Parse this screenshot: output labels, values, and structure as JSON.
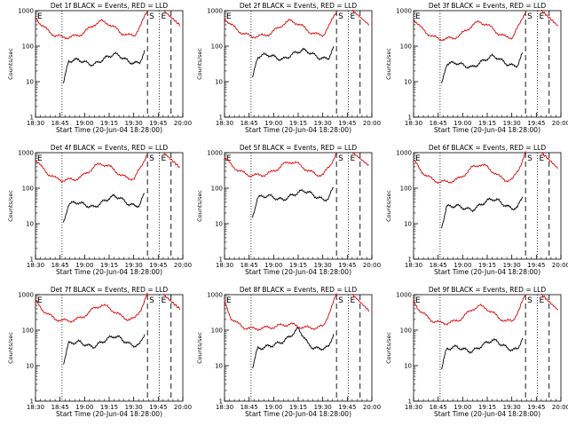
{
  "chart_data": [
    {
      "type": "line",
      "title": "Det 1f BLACK = Events, RED = LLD",
      "xlabel": "Start Time (20-Jun-04 18:28:00)",
      "ylabel": "Counts/sec",
      "yscale": "log",
      "ylim": [
        1,
        1000
      ],
      "xticks": [
        "18:30",
        "18:45",
        "19:00",
        "19:15",
        "19:30",
        "19:45",
        "20:00"
      ],
      "yticks": [
        "1",
        "10",
        "100",
        "1000"
      ],
      "markers": [
        "S",
        "E"
      ],
      "series": [
        {
          "color": "#000000",
          "values": [
            9,
            38,
            40,
            42,
            36,
            32,
            30,
            36,
            44,
            52,
            60,
            55,
            44,
            36,
            33,
            34,
            70
          ]
        },
        {
          "color": "#dd0000",
          "values": [
            650,
            380,
            260,
            200,
            180,
            180,
            190,
            220,
            300,
            420,
            500,
            440,
            330,
            240,
            200,
            200,
            390,
            1000
          ]
        }
      ]
    },
    {
      "type": "line",
      "title": "Det 2f BLACK = Events, RED = LLD",
      "xlabel": "Start Time (20-Jun-04 18:28:00)",
      "ylabel": "Counts/sec",
      "yscale": "log",
      "ylim": [
        1,
        1000
      ],
      "xticks": [
        "18:30",
        "18:45",
        "19:00",
        "19:15",
        "19:30",
        "19:45",
        "20:00"
      ],
      "yticks": [
        "1",
        "10",
        "100",
        "1000"
      ],
      "markers": [
        "S",
        "E"
      ],
      "series": [
        {
          "color": "#000000",
          "values": [
            12,
            50,
            55,
            58,
            52,
            45,
            42,
            50,
            60,
            70,
            78,
            70,
            58,
            48,
            44,
            46,
            90
          ]
        },
        {
          "color": "#dd0000",
          "values": [
            620,
            400,
            280,
            220,
            190,
            190,
            200,
            230,
            310,
            430,
            520,
            450,
            340,
            250,
            210,
            210,
            400,
            1000
          ]
        }
      ]
    },
    {
      "type": "line",
      "title": "Det 3f BLACK = Events, RED = LLD",
      "xlabel": "Start Time (20-Jun-04 18:28:00)",
      "ylabel": "Counts/sec",
      "yscale": "log",
      "ylim": [
        1,
        1000
      ],
      "xticks": [
        "18:30",
        "18:45",
        "19:00",
        "19:15",
        "19:30",
        "19:45",
        "20:00"
      ],
      "yticks": [
        "1",
        "10",
        "100",
        "1000"
      ],
      "markers": [
        "S",
        "E"
      ],
      "series": [
        {
          "color": "#000000",
          "values": [
            8,
            32,
            33,
            34,
            30,
            27,
            25,
            30,
            37,
            45,
            52,
            48,
            38,
            31,
            28,
            29,
            62
          ]
        },
        {
          "color": "#dd0000",
          "values": [
            600,
            340,
            240,
            180,
            160,
            160,
            170,
            200,
            280,
            400,
            480,
            420,
            310,
            220,
            180,
            180,
            370,
            1000
          ]
        }
      ]
    },
    {
      "type": "line",
      "title": "Det 4f BLACK = Events, RED = LLD",
      "xlabel": "Start Time (20-Jun-04 18:28:00)",
      "ylabel": "Counts/sec",
      "yscale": "log",
      "ylim": [
        1,
        1000
      ],
      "xticks": [
        "18:30",
        "18:45",
        "19:00",
        "19:15",
        "19:30",
        "19:45",
        "20:00"
      ],
      "yticks": [
        "1",
        "10",
        "100",
        "1000"
      ],
      "markers": [
        "S",
        "E"
      ],
      "series": [
        {
          "color": "#000000",
          "values": [
            10,
            36,
            38,
            40,
            35,
            31,
            29,
            35,
            43,
            52,
            60,
            55,
            43,
            35,
            32,
            33,
            70
          ]
        },
        {
          "color": "#dd0000",
          "values": [
            640,
            370,
            250,
            190,
            170,
            170,
            180,
            210,
            290,
            410,
            490,
            430,
            320,
            230,
            190,
            190,
            380,
            1000
          ]
        }
      ]
    },
    {
      "type": "line",
      "title": "Det 5f BLACK = Events, RED = LLD",
      "xlabel": "Start Time (20-Jun-04 18:28:00)",
      "ylabel": "Counts/sec",
      "yscale": "log",
      "ylim": [
        1,
        1000
      ],
      "xticks": [
        "18:30",
        "18:45",
        "19:00",
        "19:15",
        "19:30",
        "19:45",
        "20:00"
      ],
      "yticks": [
        "1",
        "10",
        "100",
        "1000"
      ],
      "markers": [
        "S",
        "E"
      ],
      "series": [
        {
          "color": "#000000",
          "values": [
            15,
            55,
            58,
            62,
            56,
            50,
            47,
            55,
            65,
            75,
            85,
            78,
            64,
            53,
            48,
            50,
            110
          ]
        },
        {
          "color": "#dd0000",
          "values": [
            700,
            450,
            330,
            260,
            230,
            230,
            240,
            270,
            350,
            470,
            560,
            500,
            380,
            290,
            240,
            240,
            430,
            1000
          ]
        }
      ]
    },
    {
      "type": "line",
      "title": "Det 6f BLACK = Events, RED = LLD",
      "xlabel": "Start Time (20-Jun-04 18:28:00)",
      "ylabel": "Counts/sec",
      "yscale": "log",
      "ylim": [
        1,
        1000
      ],
      "xticks": [
        "18:30",
        "18:45",
        "19:00",
        "19:15",
        "19:30",
        "19:45",
        "20:00"
      ],
      "yticks": [
        "1",
        "10",
        "100",
        "1000"
      ],
      "markers": [
        "S",
        "E"
      ],
      "series": [
        {
          "color": "#000000",
          "values": [
            8,
            30,
            31,
            32,
            29,
            26,
            24,
            29,
            36,
            44,
            50,
            46,
            37,
            30,
            27,
            28,
            60
          ]
        },
        {
          "color": "#dd0000",
          "values": [
            620,
            330,
            220,
            170,
            150,
            150,
            160,
            190,
            270,
            390,
            470,
            410,
            300,
            210,
            170,
            170,
            360,
            1000
          ]
        }
      ]
    },
    {
      "type": "line",
      "title": "Det 7f BLACK = Events, RED = LLD",
      "xlabel": "Start Time (20-Jun-04 18:28:00)",
      "ylabel": "Counts/sec",
      "yscale": "log",
      "ylim": [
        1,
        1000
      ],
      "xticks": [
        "18:30",
        "18:45",
        "19:00",
        "19:15",
        "19:30",
        "19:45",
        "20:00"
      ],
      "yticks": [
        "1",
        "10",
        "100",
        "1000"
      ],
      "markers": [
        "S",
        "E"
      ],
      "series": [
        {
          "color": "#000000",
          "values": [
            12,
            42,
            45,
            47,
            41,
            36,
            34,
            41,
            50,
            60,
            68,
            62,
            50,
            40,
            37,
            38,
            80
          ]
        },
        {
          "color": "#dd0000",
          "values": [
            650,
            390,
            270,
            210,
            185,
            185,
            195,
            225,
            305,
            425,
            510,
            445,
            335,
            245,
            205,
            205,
            395,
            1000
          ]
        }
      ]
    },
    {
      "type": "line",
      "title": "Det 8f BLACK = Events, RED = LLD",
      "xlabel": "Start Time (20-Jun-04 18:28:00)",
      "ylabel": "Counts/sec",
      "yscale": "log",
      "ylim": [
        1,
        1000
      ],
      "xticks": [
        "18:30",
        "18:45",
        "19:00",
        "19:15",
        "19:30",
        "19:45",
        "20:00"
      ],
      "yticks": [
        "1",
        "10",
        "100",
        "1000"
      ],
      "markers": [
        "S",
        "E"
      ],
      "series": [
        {
          "color": "#000000",
          "values": [
            9,
            30,
            32,
            35,
            38,
            42,
            48,
            60,
            80,
            110,
            70,
            40,
            32,
            30,
            31,
            33,
            80
          ]
        },
        {
          "color": "#dd0000",
          "values": [
            600,
            220,
            150,
            120,
            110,
            110,
            115,
            120,
            130,
            140,
            150,
            130,
            120,
            115,
            120,
            125,
            350,
            1000
          ]
        }
      ]
    },
    {
      "type": "line",
      "title": "Det 9f BLACK = Events, RED = LLD",
      "xlabel": "Start Time (20-Jun-04 18:28:00)",
      "ylabel": "Counts/sec",
      "yscale": "log",
      "ylim": [
        1,
        1000
      ],
      "xticks": [
        "18:30",
        "18:45",
        "19:00",
        "19:15",
        "19:30",
        "19:45",
        "20:00"
      ],
      "yticks": [
        "1",
        "10",
        "100",
        "1000"
      ],
      "markers": [
        "S",
        "E"
      ],
      "series": [
        {
          "color": "#000000",
          "values": [
            8,
            30,
            32,
            34,
            30,
            27,
            25,
            30,
            37,
            45,
            52,
            48,
            38,
            31,
            28,
            29,
            62
          ]
        },
        {
          "color": "#dd0000",
          "values": [
            630,
            350,
            240,
            180,
            160,
            160,
            170,
            200,
            280,
            400,
            480,
            420,
            310,
            220,
            180,
            180,
            370,
            1000
          ]
        }
      ]
    }
  ]
}
